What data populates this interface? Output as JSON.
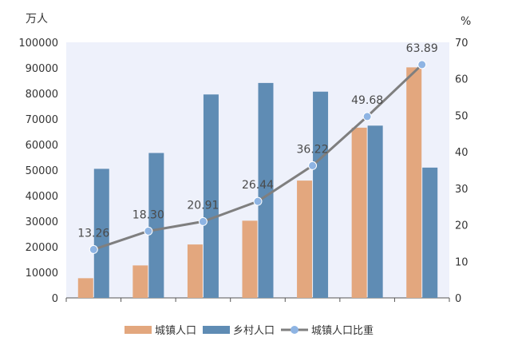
{
  "chart_data": {
    "type": "bar",
    "categories": [
      "",
      "",
      "",
      "",
      "",
      "",
      ""
    ],
    "left_axis": {
      "unit": "万人",
      "ylim": [
        0,
        100000
      ],
      "ticks": [
        0,
        10000,
        20000,
        30000,
        40000,
        50000,
        60000,
        70000,
        80000,
        90000,
        100000
      ]
    },
    "right_axis": {
      "unit": "%",
      "ylim": [
        0,
        70
      ],
      "ticks": [
        0,
        10,
        20,
        30,
        40,
        50,
        60,
        70
      ]
    },
    "series": [
      {
        "name": "城镇人口",
        "type": "bar",
        "axis": "left",
        "color": "#e3a77e",
        "values": [
          7700,
          12700,
          20900,
          30200,
          45900,
          66600,
          90199
        ]
      },
      {
        "name": "乡村人口",
        "type": "bar",
        "axis": "left",
        "color": "#5f8cb4",
        "values": [
          50500,
          56700,
          79600,
          84100,
          80700,
          67400,
          50979
        ]
      },
      {
        "name": "城镇人口比重",
        "type": "line",
        "axis": "right",
        "color": "#7f7f7f",
        "marker_color": "#8eb4e3",
        "values": [
          13.26,
          18.3,
          20.91,
          26.44,
          36.22,
          49.68,
          63.89
        ],
        "labels": [
          "13.26",
          "18.30",
          "20.91",
          "26.44",
          "36.22",
          "49.68",
          "63.89"
        ]
      }
    ],
    "plot_background": "#eef1fb",
    "grid": false,
    "legend_position": "bottom"
  }
}
